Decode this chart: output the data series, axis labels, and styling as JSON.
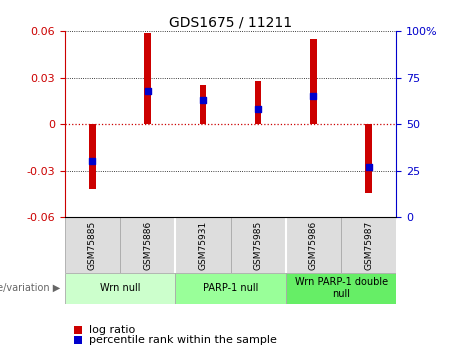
{
  "title": "GDS1675 / 11211",
  "samples": [
    "GSM75885",
    "GSM75886",
    "GSM75931",
    "GSM75985",
    "GSM75986",
    "GSM75987"
  ],
  "log_ratios": [
    -0.042,
    0.059,
    0.025,
    0.028,
    0.055,
    -0.044
  ],
  "percentile_ranks": [
    30,
    68,
    63,
    58,
    65,
    27
  ],
  "ylim_left": [
    -0.06,
    0.06
  ],
  "ylim_right": [
    0,
    100
  ],
  "yticks_left": [
    -0.06,
    -0.03,
    0,
    0.03,
    0.06
  ],
  "yticks_right": [
    0,
    25,
    50,
    75,
    100
  ],
  "bar_color": "#cc0000",
  "dot_color": "#0000cc",
  "groups": [
    {
      "label": "Wrn null",
      "samples": [
        0,
        1
      ],
      "color": "#ccffcc"
    },
    {
      "label": "PARP-1 null",
      "samples": [
        2,
        3
      ],
      "color": "#99ff99"
    },
    {
      "label": "Wrn PARP-1 double\nnull",
      "samples": [
        4,
        5
      ],
      "color": "#66ee66"
    }
  ],
  "genotype_label": "genotype/variation",
  "legend_log_ratio": "log ratio",
  "legend_percentile": "percentile rank within the sample",
  "zero_line_color": "#cc0000",
  "bar_width": 0.12,
  "dot_size": 20,
  "sample_bg": "#dddddd",
  "sample_border": "#aaaaaa"
}
